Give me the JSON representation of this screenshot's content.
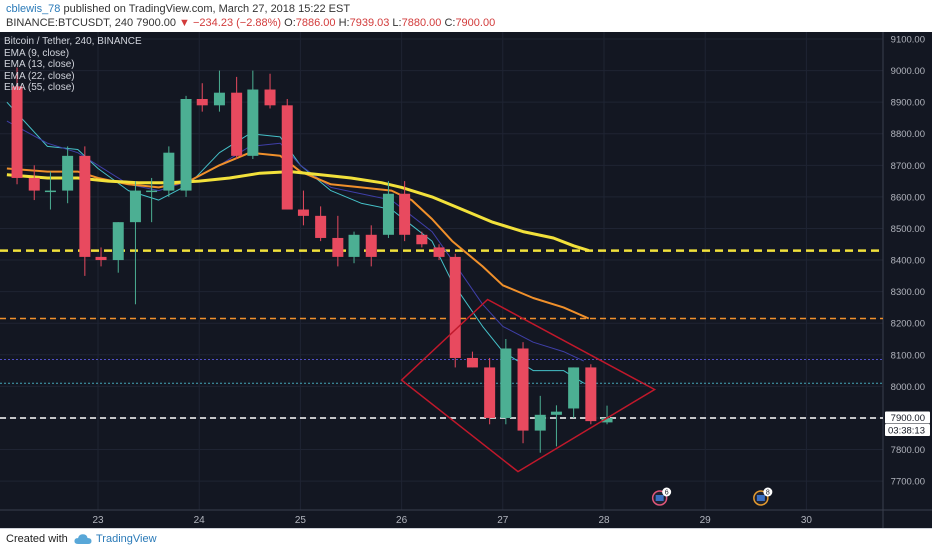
{
  "header": {
    "author": "cblewis_78",
    "published_text": "published on TradingView.com, March 27, 2018 15:22 EST",
    "symbol": "BINANCE:BTCUSDT, 240",
    "price": "7900.00",
    "change": "−234.23 (−2.88%)",
    "o_label": "O:",
    "o_value": "7886.00",
    "h_label": "H:",
    "h_value": "7939.03",
    "l_label": "L:",
    "l_value": "7880.00",
    "c_label": "C:",
    "c_value": "7900.00"
  },
  "legend": {
    "title": "Bitcoin / Tether, 240, BINANCE",
    "indicators": [
      "EMA (9, close)",
      "EMA (13, close)",
      "EMA (22, close)",
      "EMA (55, close)"
    ]
  },
  "footer": {
    "created_with": "Created with",
    "brand": "TradingView"
  },
  "colors": {
    "background": "#131722",
    "grid": "#1f2433",
    "up": "#4caf93",
    "down": "#e84a5f",
    "ema9": "#45c1c9",
    "ema13": "#3f3fa8",
    "ema22": "#f0902b",
    "ema55": "#f2e13b",
    "line_8430": "#f2e13b",
    "line_8215": "#f0902b",
    "line_8085": "#5050c8",
    "line_8010": "#45a6b8",
    "line_7900": "#ffffff",
    "diamond": "#c0182b"
  },
  "chart_data": {
    "type": "candlestick",
    "title": "Bitcoin / Tether, 240, BINANCE",
    "interval": "240",
    "x_tick_labels": [
      "23",
      "24",
      "25",
      "26",
      "27",
      "28",
      "29",
      "30"
    ],
    "y_tick_labels": [
      "9100.00",
      "9000.00",
      "8900.00",
      "8800.00",
      "8700.00",
      "8600.00",
      "8500.00",
      "8400.00",
      "8300.00",
      "8200.00",
      "8100.00",
      "8000.00",
      "7900.00",
      "7800.00",
      "7700.00"
    ],
    "ylim": [
      7630,
      9120
    ],
    "last_price_label": "7900.00",
    "countdown_label": "03:38:13",
    "event_badges": [
      {
        "day": 28.55,
        "count": "6"
      },
      {
        "day": 29.55,
        "count": "8"
      }
    ],
    "candles": [
      {
        "day": 22.2,
        "o": 8950,
        "h": 9010,
        "l": 8640,
        "c": 8660
      },
      {
        "day": 22.37,
        "o": 8660,
        "h": 8700,
        "l": 8590,
        "c": 8620
      },
      {
        "day": 22.53,
        "o": 8620,
        "h": 8680,
        "l": 8560,
        "c": 8620
      },
      {
        "day": 22.7,
        "o": 8620,
        "h": 8760,
        "l": 8580,
        "c": 8730
      },
      {
        "day": 22.87,
        "o": 8730,
        "h": 8760,
        "l": 8350,
        "c": 8410
      },
      {
        "day": 23.03,
        "o": 8410,
        "h": 8440,
        "l": 8380,
        "c": 8400
      },
      {
        "day": 23.2,
        "o": 8400,
        "h": 8520,
        "l": 8360,
        "c": 8520
      },
      {
        "day": 23.37,
        "o": 8520,
        "h": 8650,
        "l": 8260,
        "c": 8620
      },
      {
        "day": 23.53,
        "o": 8620,
        "h": 8660,
        "l": 8520,
        "c": 8620
      },
      {
        "day": 23.7,
        "o": 8620,
        "h": 8760,
        "l": 8600,
        "c": 8740
      },
      {
        "day": 23.87,
        "o": 8620,
        "h": 8920,
        "l": 8600,
        "c": 8910
      },
      {
        "day": 24.03,
        "o": 8910,
        "h": 8960,
        "l": 8870,
        "c": 8890
      },
      {
        "day": 24.2,
        "o": 8890,
        "h": 9000,
        "l": 8870,
        "c": 8930
      },
      {
        "day": 24.37,
        "o": 8930,
        "h": 8980,
        "l": 8720,
        "c": 8730
      },
      {
        "day": 24.53,
        "o": 8730,
        "h": 9000,
        "l": 8720,
        "c": 8940
      },
      {
        "day": 24.7,
        "o": 8940,
        "h": 8990,
        "l": 8880,
        "c": 8890
      },
      {
        "day": 24.87,
        "o": 8890,
        "h": 8910,
        "l": 8560,
        "c": 8560
      },
      {
        "day": 25.03,
        "o": 8560,
        "h": 8620,
        "l": 8510,
        "c": 8540
      },
      {
        "day": 25.2,
        "o": 8540,
        "h": 8570,
        "l": 8460,
        "c": 8470
      },
      {
        "day": 25.37,
        "o": 8470,
        "h": 8540,
        "l": 8380,
        "c": 8410
      },
      {
        "day": 25.53,
        "o": 8410,
        "h": 8490,
        "l": 8390,
        "c": 8480
      },
      {
        "day": 25.7,
        "o": 8480,
        "h": 8510,
        "l": 8380,
        "c": 8410
      },
      {
        "day": 25.87,
        "o": 8480,
        "h": 8650,
        "l": 8470,
        "c": 8610
      },
      {
        "day": 26.03,
        "o": 8610,
        "h": 8650,
        "l": 8460,
        "c": 8480
      },
      {
        "day": 26.2,
        "o": 8480,
        "h": 8490,
        "l": 8440,
        "c": 8450
      },
      {
        "day": 26.37,
        "o": 8440,
        "h": 8450,
        "l": 8400,
        "c": 8410
      },
      {
        "day": 26.53,
        "o": 8410,
        "h": 8420,
        "l": 8060,
        "c": 8090
      },
      {
        "day": 26.7,
        "o": 8090,
        "h": 8110,
        "l": 8060,
        "c": 8060
      },
      {
        "day": 26.87,
        "o": 8060,
        "h": 8090,
        "l": 7880,
        "c": 7900
      },
      {
        "day": 27.03,
        "o": 7900,
        "h": 8150,
        "l": 7880,
        "c": 8120
      },
      {
        "day": 27.2,
        "o": 8120,
        "h": 8140,
        "l": 7820,
        "c": 7860
      },
      {
        "day": 27.37,
        "o": 7860,
        "h": 7970,
        "l": 7790,
        "c": 7910
      },
      {
        "day": 27.53,
        "o": 7910,
        "h": 7940,
        "l": 7810,
        "c": 7920
      },
      {
        "day": 27.7,
        "o": 7930,
        "h": 8060,
        "l": 7900,
        "c": 8060
      },
      {
        "day": 27.87,
        "o": 8060,
        "h": 8070,
        "l": 7880,
        "c": 7890
      },
      {
        "day": 28.03,
        "o": 7886,
        "h": 7939.03,
        "l": 7880,
        "c": 7900
      }
    ],
    "series": [
      {
        "name": "EMA (9, close)",
        "color": "#45c1c9",
        "width": 1,
        "x": [
          22.1,
          22.5,
          22.8,
          23.0,
          23.3,
          23.6,
          23.9,
          24.2,
          24.5,
          24.8,
          25.0,
          25.3,
          25.6,
          25.9,
          26.1,
          26.3,
          26.5,
          26.8,
          27.0,
          27.3,
          27.6,
          27.8
        ],
        "y": [
          8900,
          8760,
          8750,
          8690,
          8620,
          8590,
          8640,
          8740,
          8800,
          8790,
          8700,
          8620,
          8580,
          8560,
          8510,
          8460,
          8330,
          8190,
          8110,
          8050,
          8050,
          8010
        ]
      },
      {
        "name": "EMA (13, close)",
        "color": "#3f3fa8",
        "width": 1,
        "x": [
          22.1,
          22.5,
          22.8,
          23.0,
          23.3,
          23.6,
          23.9,
          24.2,
          24.5,
          24.8,
          25.0,
          25.3,
          25.6,
          25.9,
          26.1,
          26.3,
          26.5,
          26.8,
          27.0,
          27.3,
          27.6,
          27.8
        ],
        "y": [
          8840,
          8770,
          8740,
          8700,
          8640,
          8620,
          8650,
          8700,
          8760,
          8770,
          8700,
          8630,
          8610,
          8590,
          8540,
          8490,
          8400,
          8260,
          8190,
          8140,
          8110,
          8080
        ]
      },
      {
        "name": "EMA (22, close)",
        "color": "#f0902b",
        "width": 2,
        "x": [
          22.1,
          22.5,
          22.8,
          23.0,
          23.3,
          23.6,
          23.9,
          24.2,
          24.5,
          24.8,
          25.0,
          25.3,
          25.6,
          25.9,
          26.1,
          26.3,
          26.5,
          26.8,
          27.0,
          27.3,
          27.6,
          27.85
        ],
        "y": [
          8690,
          8680,
          8680,
          8660,
          8640,
          8630,
          8650,
          8700,
          8740,
          8730,
          8680,
          8640,
          8630,
          8620,
          8590,
          8530,
          8460,
          8380,
          8320,
          8280,
          8250,
          8215
        ]
      },
      {
        "name": "EMA (55, close)",
        "color": "#f2e13b",
        "width": 3,
        "x": [
          22.1,
          22.5,
          22.8,
          23.1,
          23.4,
          23.7,
          24.0,
          24.3,
          24.6,
          24.9,
          25.2,
          25.5,
          25.8,
          26.0,
          26.3,
          26.6,
          26.9,
          27.2,
          27.5,
          27.7,
          27.85
        ],
        "y": [
          8670,
          8660,
          8660,
          8650,
          8645,
          8645,
          8650,
          8660,
          8675,
          8680,
          8670,
          8660,
          8645,
          8630,
          8600,
          8560,
          8520,
          8490,
          8470,
          8445,
          8430
        ]
      }
    ],
    "horizontal_lines": [
      {
        "value": 8430,
        "color": "#f2e13b",
        "style": "dashed",
        "width": 2.5
      },
      {
        "value": 8215,
        "color": "#f0902b",
        "style": "dashed",
        "width": 1.5
      },
      {
        "value": 8085,
        "color": "#5050c8",
        "style": "dotted",
        "width": 1
      },
      {
        "value": 8010,
        "color": "#45a6b8",
        "style": "dotted",
        "width": 1
      },
      {
        "value": 7900,
        "color": "#ffffff",
        "style": "dashed",
        "width": 1.5
      }
    ],
    "annotations": [
      {
        "type": "diamond",
        "color": "#c0182b",
        "points": [
          {
            "day": 26.85,
            "price": 8275
          },
          {
            "day": 28.5,
            "price": 7990
          },
          {
            "day": 27.15,
            "price": 7730
          },
          {
            "day": 26.0,
            "price": 8020
          }
        ]
      }
    ]
  }
}
